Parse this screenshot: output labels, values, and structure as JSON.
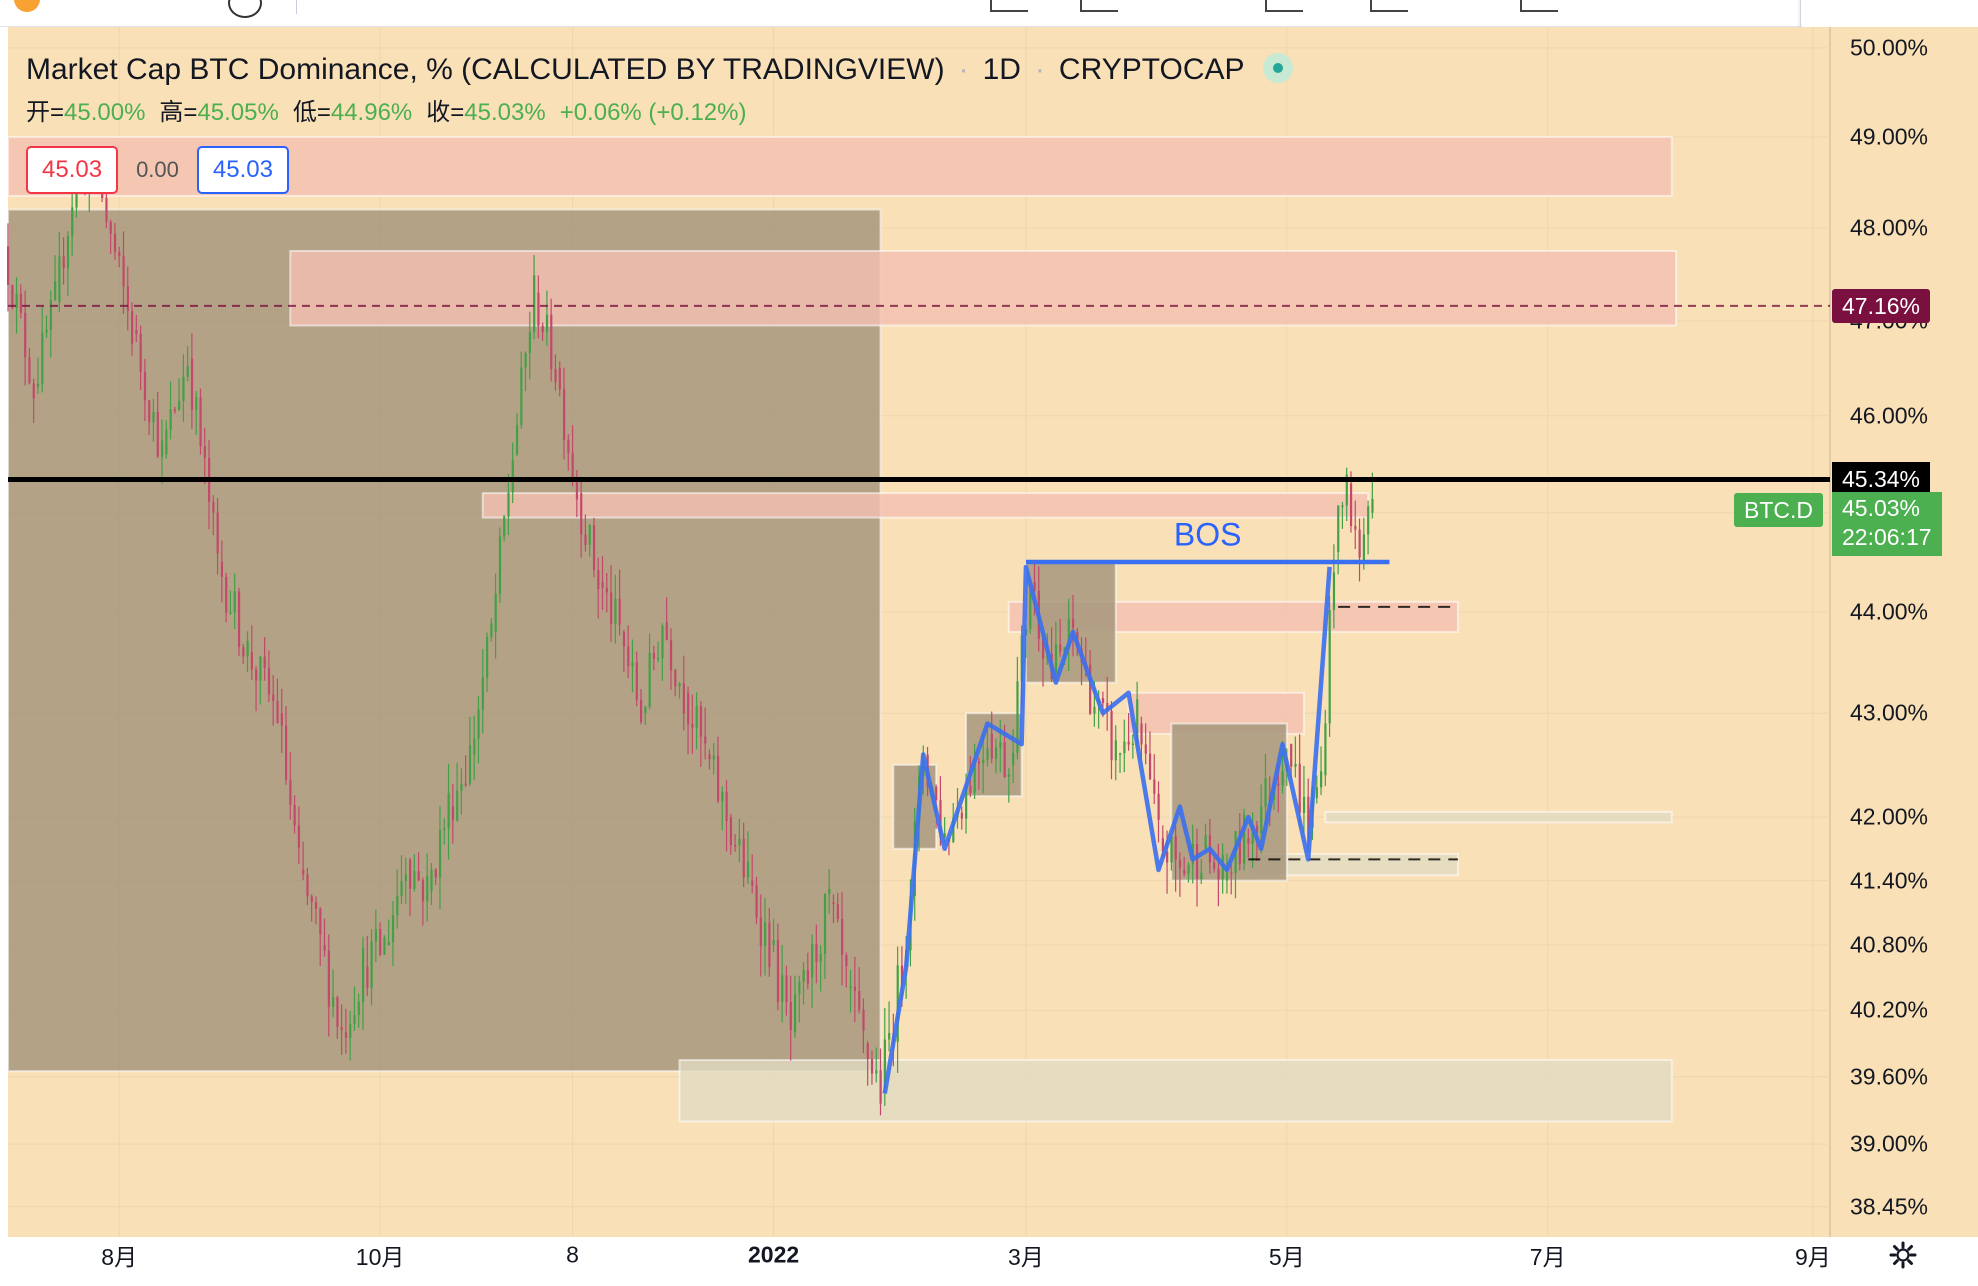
{
  "legend": {
    "title": "Market Cap BTC Dominance, % (CALCULATED BY TRADINGVIEW)",
    "interval": "1D",
    "exchange": "CRYPTOCAP",
    "ohlc": [
      {
        "k": "开=",
        "v": "45.00%"
      },
      {
        "k": "高=",
        "v": "45.05%"
      },
      {
        "k": "低=",
        "v": "44.96%"
      },
      {
        "k": "收=",
        "v": "45.03%"
      }
    ],
    "change": "+0.06% (+0.12%)"
  },
  "price_boxes": {
    "sell": "45.03",
    "spread": "0.00",
    "buy": "45.03"
  },
  "tags": {
    "pink_level": "47.16%",
    "black_level": "45.34%",
    "symbol": "BTC.D",
    "current_price": "45.03%",
    "countdown": "22:06:17"
  },
  "annotation": {
    "bos": "BOS"
  },
  "colors": {
    "chart_bg": "#f9e0b6",
    "shaded": "#a8987e",
    "zone_pink": "#f4c0b1",
    "zone_grey": "#e1dbc2",
    "up": "#43a047",
    "down": "#c2496b",
    "wave": "#3a6ff0",
    "tag_green": "#4caf50",
    "tag_pink": "#7a1040"
  },
  "icons": {
    "settings": "gear-icon",
    "status": "market-open-dot"
  },
  "chart_data": {
    "type": "candlestick",
    "title": "Market Cap BTC Dominance, % (CALCULATED BY TRADINGVIEW)",
    "x_tick_labels": [
      "8月",
      "10月",
      "8",
      "2022",
      "3月",
      "5月",
      "7月",
      "9月"
    ],
    "y_tick_labels": [
      "50.00%",
      "49.00%",
      "48.00%",
      "47.00%",
      "46.00%",
      "45.00%",
      "44.00%",
      "43.00%",
      "42.00%",
      "41.40%",
      "40.80%",
      "40.20%",
      "39.60%",
      "39.00%",
      "38.45%"
    ],
    "y_scale": "log",
    "ylim": [
      38.3,
      50.1
    ],
    "x_range": [
      "2021-07-06",
      "2022-09-05"
    ],
    "ohlc_close": "45.03%",
    "horizontal_lines": [
      {
        "value": 45.34,
        "style": "solid",
        "color": "#000000"
      },
      {
        "value": 47.16,
        "style": "dashed",
        "color": "#7a1040"
      },
      {
        "value": 44.05,
        "style": "dashed",
        "color": "#000000",
        "x": [
          "2022-05-13",
          "2022-06-10"
        ]
      },
      {
        "value": 41.6,
        "style": "dashed",
        "color": "#000000",
        "x": [
          "2022-04-22",
          "2022-06-10"
        ]
      }
    ],
    "bos": {
      "value": 44.5,
      "x": [
        "2022-03-01",
        "2022-05-25"
      ]
    },
    "zones": [
      {
        "kind": "shaded",
        "x": [
          "2021-07-06",
          "2022-01-26"
        ],
        "y": [
          39.65,
          48.2
        ]
      },
      {
        "kind": "pink",
        "x": [
          "2021-07-06",
          "2022-07-30"
        ],
        "y": [
          48.35,
          49.0
        ]
      },
      {
        "kind": "pink",
        "x": [
          "2021-09-10",
          "2022-07-31"
        ],
        "y": [
          46.95,
          47.75
        ]
      },
      {
        "kind": "pink",
        "x": [
          "2021-10-25",
          "2022-05-20"
        ],
        "y": [
          44.95,
          45.2
        ]
      },
      {
        "kind": "pink",
        "x": [
          "2022-02-25",
          "2022-06-10"
        ],
        "y": [
          43.8,
          44.1
        ]
      },
      {
        "kind": "pink",
        "x": [
          "2022-03-25",
          "2022-05-05"
        ],
        "y": [
          42.8,
          43.2
        ]
      },
      {
        "kind": "grey",
        "x": [
          "2021-12-10",
          "2022-07-30"
        ],
        "y": [
          39.2,
          39.75
        ]
      },
      {
        "kind": "grey",
        "x": [
          "2022-05-10",
          "2022-07-30"
        ],
        "y": [
          41.95,
          42.05
        ]
      },
      {
        "kind": "grey",
        "x": [
          "2022-04-22",
          "2022-06-10"
        ],
        "y": [
          41.45,
          41.65
        ]
      },
      {
        "kind": "shaded",
        "x": [
          "2022-03-01",
          "2022-03-22"
        ],
        "y": [
          43.3,
          44.5
        ]
      },
      {
        "kind": "shaded",
        "x": [
          "2022-02-15",
          "2022-02-28"
        ],
        "y": [
          42.2,
          43.0
        ]
      },
      {
        "kind": "shaded",
        "x": [
          "2022-01-29",
          "2022-02-08"
        ],
        "y": [
          41.7,
          42.5
        ]
      },
      {
        "kind": "shaded",
        "x": [
          "2022-04-04",
          "2022-05-01"
        ],
        "y": [
          41.4,
          42.9
        ]
      }
    ],
    "wave": [
      {
        "x": "2022-01-27",
        "y": 39.45
      },
      {
        "x": "2022-02-01",
        "y": 40.6
      },
      {
        "x": "2022-02-05",
        "y": 42.6
      },
      {
        "x": "2022-02-10",
        "y": 41.7
      },
      {
        "x": "2022-02-20",
        "y": 42.9
      },
      {
        "x": "2022-02-28",
        "y": 42.7
      },
      {
        "x": "2022-03-01",
        "y": 44.45
      },
      {
        "x": "2022-03-08",
        "y": 43.3
      },
      {
        "x": "2022-03-12",
        "y": 43.8
      },
      {
        "x": "2022-03-19",
        "y": 43.0
      },
      {
        "x": "2022-03-25",
        "y": 43.2
      },
      {
        "x": "2022-04-01",
        "y": 41.5
      },
      {
        "x": "2022-04-06",
        "y": 42.1
      },
      {
        "x": "2022-04-09",
        "y": 41.6
      },
      {
        "x": "2022-04-13",
        "y": 41.7
      },
      {
        "x": "2022-04-17",
        "y": 41.5
      },
      {
        "x": "2022-04-22",
        "y": 42.0
      },
      {
        "x": "2022-04-25",
        "y": 41.7
      },
      {
        "x": "2022-04-30",
        "y": 42.7
      },
      {
        "x": "2022-05-06",
        "y": 41.6
      },
      {
        "x": "2022-05-11",
        "y": 44.45
      }
    ],
    "candles": [
      [
        "2021-07-06",
        47.8,
        46.3
      ],
      [
        "2021-07-13",
        46.3,
        47.2
      ],
      [
        "2021-07-18",
        47.2,
        48.6
      ],
      [
        "2021-07-23",
        48.6,
        48.5
      ],
      [
        "2021-07-28",
        48.5,
        46.9
      ],
      [
        "2021-08-05",
        46.9,
        45.6
      ],
      [
        "2021-08-12",
        45.6,
        46.6
      ],
      [
        "2021-08-18",
        46.6,
        44.5
      ],
      [
        "2021-08-25",
        44.5,
        43.6
      ],
      [
        "2021-09-01",
        43.6,
        43.0
      ],
      [
        "2021-09-08",
        43.0,
        41.5
      ],
      [
        "2021-09-13",
        41.5,
        40.8
      ],
      [
        "2021-09-18",
        40.8,
        40.0
      ],
      [
        "2021-09-23",
        40.0,
        40.6
      ],
      [
        "2021-09-28",
        40.6,
        40.8
      ],
      [
        "2021-10-03",
        40.8,
        41.6
      ],
      [
        "2021-10-08",
        41.6,
        41.3
      ],
      [
        "2021-10-13",
        41.3,
        42.1
      ],
      [
        "2021-10-18",
        42.1,
        42.6
      ],
      [
        "2021-10-23",
        42.6,
        43.8
      ],
      [
        "2021-10-28",
        43.8,
        45.6
      ],
      [
        "2021-11-02",
        45.6,
        47.3
      ],
      [
        "2021-11-07",
        47.3,
        46.5
      ],
      [
        "2021-11-12",
        46.5,
        45.2
      ],
      [
        "2021-11-17",
        45.2,
        44.3
      ],
      [
        "2021-11-22",
        44.3,
        43.8
      ],
      [
        "2021-11-27",
        43.8,
        43.0
      ],
      [
        "2021-12-02",
        43.0,
        43.9
      ],
      [
        "2021-12-07",
        43.9,
        43.2
      ],
      [
        "2021-12-12",
        43.2,
        42.6
      ],
      [
        "2021-12-17",
        42.6,
        42.0
      ],
      [
        "2021-12-22",
        42.0,
        41.4
      ],
      [
        "2021-12-27",
        41.4,
        40.8
      ],
      [
        "2022-01-01",
        40.8,
        40.0
      ],
      [
        "2022-01-06",
        40.0,
        40.5
      ],
      [
        "2022-01-10",
        40.5,
        41.2
      ],
      [
        "2022-01-15",
        41.2,
        40.4
      ],
      [
        "2022-01-19",
        40.4,
        39.9
      ],
      [
        "2022-01-23",
        39.9,
        39.5
      ],
      [
        "2022-01-27",
        39.5,
        40.6
      ],
      [
        "2022-02-01",
        40.6,
        42.6
      ],
      [
        "2022-02-06",
        42.6,
        41.8
      ],
      [
        "2022-02-11",
        41.8,
        42.3
      ],
      [
        "2022-02-16",
        42.3,
        42.8
      ],
      [
        "2022-02-21",
        42.8,
        42.5
      ],
      [
        "2022-02-26",
        42.5,
        44.3
      ],
      [
        "2022-03-03",
        44.3,
        43.4
      ],
      [
        "2022-03-08",
        43.4,
        43.8
      ],
      [
        "2022-03-13",
        43.8,
        43.1
      ],
      [
        "2022-03-18",
        43.1,
        42.6
      ],
      [
        "2022-03-23",
        42.6,
        42.9
      ],
      [
        "2022-03-28",
        42.9,
        41.8
      ],
      [
        "2022-04-02",
        41.8,
        41.5
      ],
      [
        "2022-04-07",
        41.5,
        41.7
      ],
      [
        "2022-04-12",
        41.7,
        41.4
      ],
      [
        "2022-04-17",
        41.4,
        41.8
      ],
      [
        "2022-04-22",
        41.8,
        42.2
      ],
      [
        "2022-04-27",
        42.2,
        42.7
      ],
      [
        "2022-05-02",
        42.7,
        41.9
      ],
      [
        "2022-05-07",
        41.9,
        42.4
      ],
      [
        "2022-05-10",
        42.4,
        44.6
      ],
      [
        "2022-05-13",
        44.6,
        45.3
      ],
      [
        "2022-05-16",
        45.3,
        44.5
      ],
      [
        "2022-05-19",
        44.5,
        45.1
      ],
      [
        "2022-05-21",
        45.0,
        45.03
      ]
    ]
  }
}
